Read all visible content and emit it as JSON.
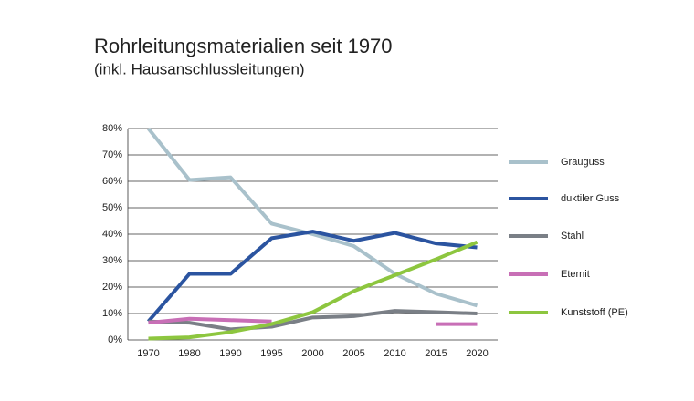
{
  "chart_data": {
    "type": "line",
    "title": "Rohrleitungsmaterialien seit 1970",
    "subtitle": "(inkl. Hausanschlussleitungen)",
    "categories": [
      "1970",
      "1980",
      "1990",
      "1995",
      "2000",
      "2005",
      "2010",
      "2015",
      "2020"
    ],
    "ylim": [
      0,
      80
    ],
    "yticks": [
      {
        "value": 0,
        "label": "0%"
      },
      {
        "value": 10,
        "label": "10%"
      },
      {
        "value": 20,
        "label": "20%"
      },
      {
        "value": 30,
        "label": "30%"
      },
      {
        "value": 40,
        "label": "40%"
      },
      {
        "value": 50,
        "label": "50%"
      },
      {
        "value": 60,
        "label": "60%"
      },
      {
        "value": 70,
        "label": "70%"
      },
      {
        "value": 80,
        "label": "80%"
      }
    ],
    "grid": true,
    "legend": "right",
    "series": [
      {
        "name": "Grauguss",
        "color": "#a9c1cb",
        "values": [
          80,
          60.5,
          61.5,
          44,
          40,
          35.5,
          25,
          17.5,
          13
        ]
      },
      {
        "name": "duktiler Guss",
        "color": "#2b54a0",
        "values": [
          7,
          25,
          25,
          38.5,
          41,
          37.5,
          40.5,
          36.5,
          35
        ]
      },
      {
        "name": "Stahl",
        "color": "#7a7f86",
        "values": [
          7,
          6.5,
          4,
          5,
          8.5,
          9,
          11,
          10.5,
          10
        ]
      },
      {
        "name": "Eternit",
        "color": "#c86fb6",
        "values": [
          6.5,
          8,
          7.5,
          7,
          null,
          null,
          null,
          6,
          6
        ]
      },
      {
        "name": "Kunststoff (PE)",
        "color": "#8dc63f",
        "values": [
          0.5,
          1,
          3,
          6,
          10.5,
          18.5,
          24.5,
          30.5,
          37
        ]
      }
    ]
  }
}
